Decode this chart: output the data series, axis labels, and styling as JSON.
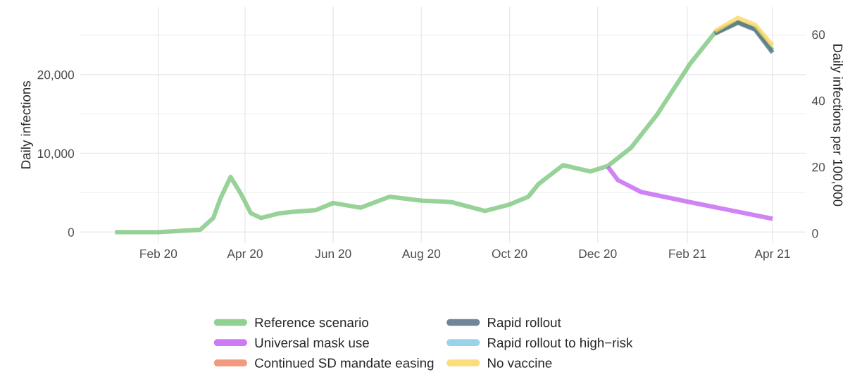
{
  "chart_data": {
    "type": "line",
    "ylabel": "Daily infections",
    "y2label": "Daily infections per 100,000",
    "x": [
      "2020-01-02",
      "2020-02-01",
      "2020-03-01",
      "2020-03-10",
      "2020-03-15",
      "2020-03-22",
      "2020-03-29",
      "2020-04-05",
      "2020-04-12",
      "2020-04-25",
      "2020-05-05",
      "2020-05-20",
      "2020-06-01",
      "2020-06-20",
      "2020-07-10",
      "2020-08-01",
      "2020-08-15",
      "2020-08-22",
      "2020-09-14",
      "2020-10-01",
      "2020-10-14",
      "2020-10-21",
      "2020-11-07",
      "2020-11-26",
      "2020-12-08",
      "2020-12-24",
      "2021-01-11",
      "2021-02-03",
      "2021-02-20",
      "2021-03-08",
      "2021-03-20",
      "2021-04-01"
    ],
    "series": [
      {
        "name": "Reference scenario",
        "color": "#74c476",
        "values": [
          0,
          0,
          300,
          1800,
          4300,
          7000,
          4900,
          2400,
          1800,
          2400,
          2600,
          2800,
          3700,
          3100,
          4500,
          4000,
          3900,
          3800,
          2700,
          3500,
          4500,
          6100,
          8500,
          7700,
          8400,
          10700,
          14900,
          21400,
          25300,
          26700,
          25900,
          23100
        ]
      },
      {
        "name": "Universal mask use",
        "color": "#bf5af2",
        "x": [
          "2020-12-08",
          "2020-12-15",
          "2020-12-31",
          "2021-02-03",
          "2021-04-01"
        ],
        "values": [
          8300,
          6600,
          5100,
          3800,
          1700
        ]
      },
      {
        "name": "Continued SD mandate easing",
        "color": "#f08060",
        "values": [
          null,
          null,
          null,
          null,
          null,
          null,
          null,
          null,
          null,
          null,
          null,
          null,
          null,
          null,
          null,
          null,
          null,
          null,
          null,
          null,
          null,
          null,
          null,
          null,
          null,
          null,
          null,
          null,
          null,
          null,
          null,
          null
        ]
      },
      {
        "name": "Rapid rollout",
        "color": "#4a6781",
        "x": [
          "2021-02-20",
          "2021-03-08",
          "2021-03-20",
          "2021-04-01"
        ],
        "values": [
          25200,
          26600,
          25700,
          22800
        ]
      },
      {
        "name": "Rapid rollout to high−risk",
        "color": "#7ec8e3",
        "values": [
          null,
          null,
          null,
          null,
          null,
          null,
          null,
          null,
          null,
          null,
          null,
          null,
          null,
          null,
          null,
          null,
          null,
          null,
          null,
          null,
          null,
          null,
          null,
          null,
          null,
          null,
          null,
          null,
          null,
          null,
          null,
          null
        ]
      },
      {
        "name": "No vaccine",
        "color": "#f9d45c",
        "x": [
          "2021-02-20",
          "2021-03-08",
          "2021-03-20",
          "2021-04-01"
        ],
        "values": [
          25500,
          27200,
          26300,
          23700
        ]
      }
    ],
    "xlim": [
      "2019-12-09",
      "2021-04-24"
    ],
    "xticks": [
      {
        "value": "2020-02-01",
        "label": "Feb 20"
      },
      {
        "value": "2020-04-01",
        "label": "Apr 20"
      },
      {
        "value": "2020-06-01",
        "label": "Jun 20"
      },
      {
        "value": "2020-08-01",
        "label": "Aug 20"
      },
      {
        "value": "2020-10-01",
        "label": "Oct 20"
      },
      {
        "value": "2020-12-01",
        "label": "Dec 20"
      },
      {
        "value": "2021-02-01",
        "label": "Feb 21"
      },
      {
        "value": "2021-04-01",
        "label": "Apr 21"
      }
    ],
    "ylim": [
      -1400,
      28600
    ],
    "yticks": [
      0,
      {
        "value": 10000,
        "label": "10,000"
      },
      {
        "value": 20000,
        "label": "20,000"
      }
    ],
    "y2lim": [
      -3.0,
      68.3
    ],
    "y2ticks": [
      0,
      20,
      40,
      60
    ],
    "grid": true,
    "legend": "bottom",
    "line_style": "solid"
  }
}
